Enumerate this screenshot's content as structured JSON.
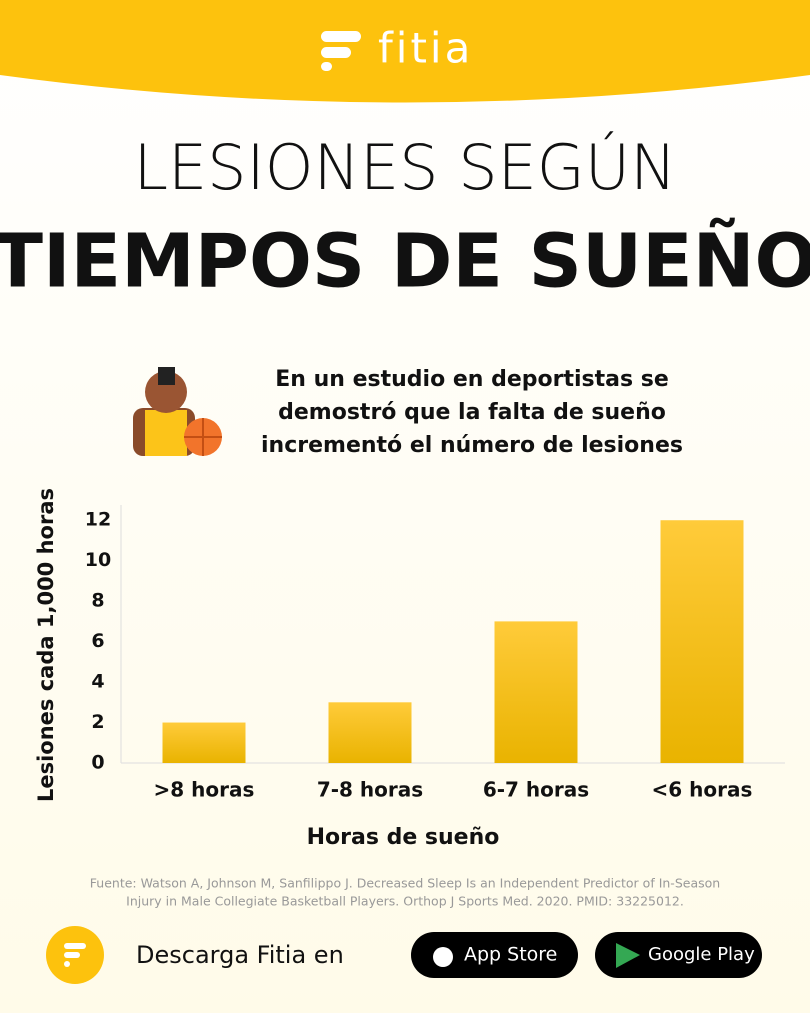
{
  "header": {
    "brand": "fitia"
  },
  "title": {
    "line1": "LESIONES SEGÚN",
    "line2": "TIEMPOS DE SUEÑO"
  },
  "subtitle_lines": [
    "En un estudio en deportistas se",
    "demostró que la falta de sueño",
    "incrementó el número de lesiones"
  ],
  "chart_data": {
    "type": "bar",
    "categories": [
      ">8 horas",
      "7-8 horas",
      "6-7 horas",
      "<6 horas"
    ],
    "values": [
      2,
      3,
      7,
      12
    ],
    "color": "#fcc419",
    "ylim": [
      0,
      13
    ],
    "yticks": [
      0,
      2,
      4,
      6,
      8,
      10,
      12
    ],
    "x_label": "Horas de sueño",
    "y_label": "Lesiones cada 1,000 horas",
    "grid": false
  },
  "source_lines": [
    "Fuente: Watson A, Johnson M, Sanfilippo J. Decreased Sleep Is an Independent Predictor of In-Season",
    "Injury in Male Collegiate Basketball Players. Orthop J Sports Med. 2020. PMID: 33225012."
  ],
  "footer": {
    "cta": "Descarga Fitia en",
    "app_store": "App Store",
    "google_play": "Google Play"
  }
}
